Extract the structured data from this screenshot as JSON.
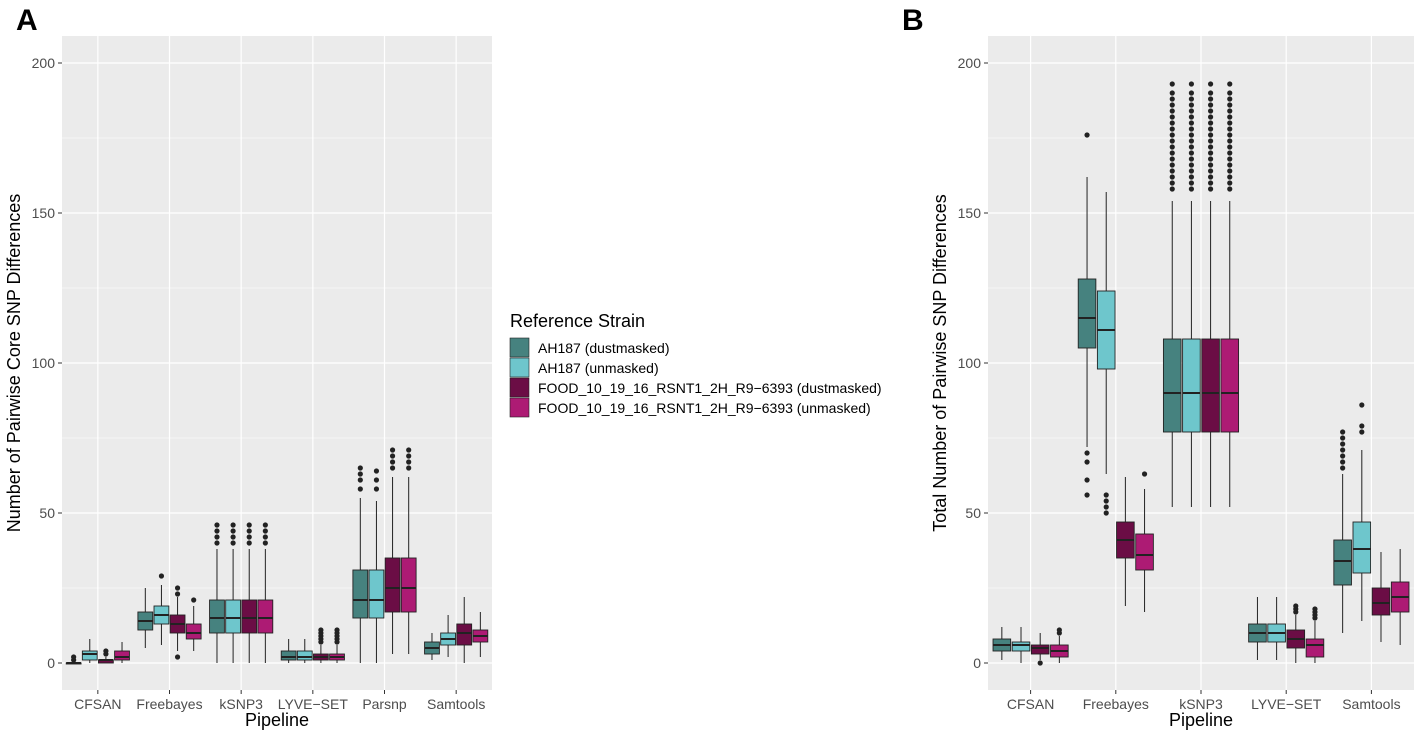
{
  "colors": {
    "panel_bg": "#EBEBEB",
    "grid": "#FFFFFF",
    "outline": "#222222",
    "AH187_dust": "#46827F",
    "AH187_unmasked": "#6EC6CC",
    "FOOD_dust": "#6B0D45",
    "FOOD_unmasked": "#AD1B74"
  },
  "legend": {
    "title": "Reference Strain",
    "entries": [
      {
        "label": "AH187 (dustmasked)",
        "color": "#46827F"
      },
      {
        "label": "AH187 (unmasked)",
        "color": "#6EC6CC"
      },
      {
        "label": "FOOD_10_19_16_RSNT1_2H_R9−6393 (dustmasked)",
        "color": "#6B0D45"
      },
      {
        "label": "FOOD_10_19_16_RSNT1_2H_R9−6393 (unmasked)",
        "color": "#AD1B74"
      }
    ]
  },
  "chart_data": [
    {
      "panel": "A",
      "type": "boxplot",
      "xlabel": "Pipeline",
      "ylabel": "Number of Pairwise Core SNP Differences",
      "ylim": [
        -9,
        209
      ],
      "yticks": [
        0,
        50,
        100,
        150,
        200
      ],
      "categories": [
        "CFSAN",
        "Freebayes",
        "kSNP3",
        "LYVE−SET",
        "Parsnp",
        "Samtools"
      ],
      "series": [
        {
          "name": "AH187 (dustmasked)",
          "boxes": [
            {
              "cat": "CFSAN",
              "min": 0,
              "q1": 0,
              "median": 0,
              "q3": 0,
              "max": 0,
              "outliers": [
                1,
                2
              ]
            },
            {
              "cat": "Freebayes",
              "min": 5,
              "q1": 11,
              "median": 14,
              "q3": 17,
              "max": 25,
              "outliers": []
            },
            {
              "cat": "kSNP3",
              "min": 0,
              "q1": 10,
              "median": 15,
              "q3": 21,
              "max": 38,
              "outliers": [
                40,
                42,
                44,
                46
              ]
            },
            {
              "cat": "LYVE−SET",
              "min": 0,
              "q1": 1,
              "median": 2,
              "q3": 4,
              "max": 8,
              "outliers": []
            },
            {
              "cat": "Parsnp",
              "min": 0,
              "q1": 15,
              "median": 21,
              "q3": 31,
              "max": 55,
              "outliers": [
                58,
                61,
                63,
                65
              ]
            },
            {
              "cat": "Samtools",
              "min": 1,
              "q1": 3,
              "median": 5,
              "q3": 7,
              "max": 10,
              "outliers": []
            }
          ]
        },
        {
          "name": "AH187 (unmasked)",
          "boxes": [
            {
              "cat": "CFSAN",
              "min": 0,
              "q1": 1,
              "median": 3,
              "q3": 4,
              "max": 8,
              "outliers": []
            },
            {
              "cat": "Freebayes",
              "min": 6,
              "q1": 13,
              "median": 16,
              "q3": 19,
              "max": 26,
              "outliers": [
                29
              ]
            },
            {
              "cat": "kSNP3",
              "min": 0,
              "q1": 10,
              "median": 15,
              "q3": 21,
              "max": 38,
              "outliers": [
                40,
                42,
                44,
                46
              ]
            },
            {
              "cat": "LYVE−SET",
              "min": 0,
              "q1": 1,
              "median": 2,
              "q3": 4,
              "max": 8,
              "outliers": []
            },
            {
              "cat": "Parsnp",
              "min": 0,
              "q1": 15,
              "median": 21,
              "q3": 31,
              "max": 54,
              "outliers": [
                58,
                61,
                64
              ]
            },
            {
              "cat": "Samtools",
              "min": 2,
              "q1": 6,
              "median": 8,
              "q3": 10,
              "max": 16,
              "outliers": []
            }
          ]
        },
        {
          "name": "FOOD_10_19_16_RSNT1_2H_R9−6393 (dustmasked)",
          "boxes": [
            {
              "cat": "CFSAN",
              "min": 0,
              "q1": 0,
              "median": 1,
              "q3": 1,
              "max": 2,
              "outliers": [
                3,
                4
              ]
            },
            {
              "cat": "Freebayes",
              "min": 4,
              "q1": 10,
              "median": 13,
              "q3": 16,
              "max": 22,
              "outliers": [
                2,
                23,
                25
              ]
            },
            {
              "cat": "kSNP3",
              "min": 0,
              "q1": 10,
              "median": 15,
              "q3": 21,
              "max": 38,
              "outliers": [
                40,
                42,
                44,
                46
              ]
            },
            {
              "cat": "LYVE−SET",
              "min": 0,
              "q1": 1,
              "median": 2,
              "q3": 3,
              "max": 6,
              "outliers": [
                7,
                8,
                9,
                10,
                11
              ]
            },
            {
              "cat": "Parsnp",
              "min": 3,
              "q1": 17,
              "median": 25,
              "q3": 35,
              "max": 62,
              "outliers": [
                65,
                67,
                69,
                71
              ]
            },
            {
              "cat": "Samtools",
              "min": 0,
              "q1": 6,
              "median": 10,
              "q3": 13,
              "max": 22,
              "outliers": []
            }
          ]
        },
        {
          "name": "FOOD_10_19_16_RSNT1_2H_R9−6393 (unmasked)",
          "boxes": [
            {
              "cat": "CFSAN",
              "min": 0,
              "q1": 1,
              "median": 2,
              "q3": 4,
              "max": 7,
              "outliers": []
            },
            {
              "cat": "Freebayes",
              "min": 4,
              "q1": 8,
              "median": 10,
              "q3": 13,
              "max": 19,
              "outliers": [
                21
              ]
            },
            {
              "cat": "kSNP3",
              "min": 0,
              "q1": 10,
              "median": 15,
              "q3": 21,
              "max": 38,
              "outliers": [
                40,
                42,
                44,
                46
              ]
            },
            {
              "cat": "LYVE−SET",
              "min": 0,
              "q1": 1,
              "median": 2,
              "q3": 3,
              "max": 6,
              "outliers": [
                7,
                8,
                9,
                10,
                11
              ]
            },
            {
              "cat": "Parsnp",
              "min": 3,
              "q1": 17,
              "median": 25,
              "q3": 35,
              "max": 62,
              "outliers": [
                65,
                67,
                69,
                71
              ]
            },
            {
              "cat": "Samtools",
              "min": 2,
              "q1": 7,
              "median": 9,
              "q3": 11,
              "max": 17,
              "outliers": []
            }
          ]
        }
      ]
    },
    {
      "panel": "B",
      "type": "boxplot",
      "xlabel": "Pipeline",
      "ylabel": "Total Number of Pairwise SNP Differences",
      "ylim": [
        -9,
        209
      ],
      "yticks": [
        0,
        50,
        100,
        150,
        200
      ],
      "categories": [
        "CFSAN",
        "Freebayes",
        "kSNP3",
        "LYVE−SET",
        "Samtools"
      ],
      "series": [
        {
          "name": "AH187 (dustmasked)",
          "boxes": [
            {
              "cat": "CFSAN",
              "min": 1,
              "q1": 4,
              "median": 6,
              "q3": 8,
              "max": 12,
              "outliers": []
            },
            {
              "cat": "Freebayes",
              "min": 72,
              "q1": 105,
              "median": 115,
              "q3": 128,
              "max": 162,
              "outliers": [
                56,
                61,
                67,
                70,
                176
              ]
            },
            {
              "cat": "kSNP3",
              "min": 52,
              "q1": 77,
              "median": 90,
              "q3": 108,
              "max": 154,
              "outliers": [
                158,
                160,
                162,
                164,
                166,
                168,
                170,
                172,
                174,
                176,
                178,
                180,
                182,
                184,
                186,
                188,
                190,
                193
              ]
            },
            {
              "cat": "LYVE−SET",
              "min": 1,
              "q1": 7,
              "median": 10,
              "q3": 13,
              "max": 22,
              "outliers": []
            },
            {
              "cat": "Samtools",
              "min": 10,
              "q1": 26,
              "median": 34,
              "q3": 41,
              "max": 63,
              "outliers": [
                65,
                67,
                69,
                71,
                73,
                75,
                77
              ]
            }
          ]
        },
        {
          "name": "AH187 (unmasked)",
          "boxes": [
            {
              "cat": "CFSAN",
              "min": 0,
              "q1": 4,
              "median": 6,
              "q3": 7,
              "max": 12,
              "outliers": []
            },
            {
              "cat": "Freebayes",
              "min": 63,
              "q1": 98,
              "median": 111,
              "q3": 124,
              "max": 157,
              "outliers": [
                50,
                52,
                54,
                56
              ]
            },
            {
              "cat": "kSNP3",
              "min": 52,
              "q1": 77,
              "median": 90,
              "q3": 108,
              "max": 154,
              "outliers": [
                158,
                160,
                162,
                164,
                166,
                168,
                170,
                172,
                174,
                176,
                178,
                180,
                182,
                184,
                186,
                188,
                190,
                193
              ]
            },
            {
              "cat": "LYVE−SET",
              "min": 1,
              "q1": 7,
              "median": 10,
              "q3": 13,
              "max": 22,
              "outliers": []
            },
            {
              "cat": "Samtools",
              "min": 14,
              "q1": 30,
              "median": 38,
              "q3": 47,
              "max": 71,
              "outliers": [
                77,
                79,
                86
              ]
            }
          ]
        },
        {
          "name": "FOOD_10_19_16_RSNT1_2H_R9−6393 (dustmasked)",
          "boxes": [
            {
              "cat": "CFSAN",
              "min": 1,
              "q1": 3,
              "median": 5,
              "q3": 6,
              "max": 10,
              "outliers": [
                0
              ]
            },
            {
              "cat": "Freebayes",
              "min": 19,
              "q1": 35,
              "median": 41,
              "q3": 47,
              "max": 62,
              "outliers": []
            },
            {
              "cat": "kSNP3",
              "min": 52,
              "q1": 77,
              "median": 90,
              "q3": 108,
              "max": 154,
              "outliers": [
                158,
                160,
                162,
                164,
                166,
                168,
                170,
                172,
                174,
                176,
                178,
                180,
                182,
                184,
                186,
                188,
                190,
                193
              ]
            },
            {
              "cat": "LYVE−SET",
              "min": 0,
              "q1": 5,
              "median": 8,
              "q3": 11,
              "max": 16,
              "outliers": [
                17,
                18,
                19
              ]
            },
            {
              "cat": "Samtools",
              "min": 7,
              "q1": 16,
              "median": 20,
              "q3": 25,
              "max": 37,
              "outliers": []
            }
          ]
        },
        {
          "name": "FOOD_10_19_16_RSNT1_2H_R9−6393 (unmasked)",
          "boxes": [
            {
              "cat": "CFSAN",
              "min": 0,
              "q1": 2,
              "median": 4,
              "q3": 6,
              "max": 9,
              "outliers": [
                10,
                11
              ]
            },
            {
              "cat": "Freebayes",
              "min": 17,
              "q1": 31,
              "median": 36,
              "q3": 43,
              "max": 58,
              "outliers": [
                63
              ]
            },
            {
              "cat": "kSNP3",
              "min": 52,
              "q1": 77,
              "median": 90,
              "q3": 108,
              "max": 154,
              "outliers": [
                158,
                160,
                162,
                164,
                166,
                168,
                170,
                172,
                174,
                176,
                178,
                180,
                182,
                184,
                186,
                188,
                190,
                193
              ]
            },
            {
              "cat": "LYVE−SET",
              "min": 0,
              "q1": 2,
              "median": 6,
              "q3": 8,
              "max": 14,
              "outliers": [
                15,
                16,
                17,
                18
              ]
            },
            {
              "cat": "Samtools",
              "min": 6,
              "q1": 17,
              "median": 22,
              "q3": 27,
              "max": 38,
              "outliers": []
            }
          ]
        }
      ]
    }
  ]
}
